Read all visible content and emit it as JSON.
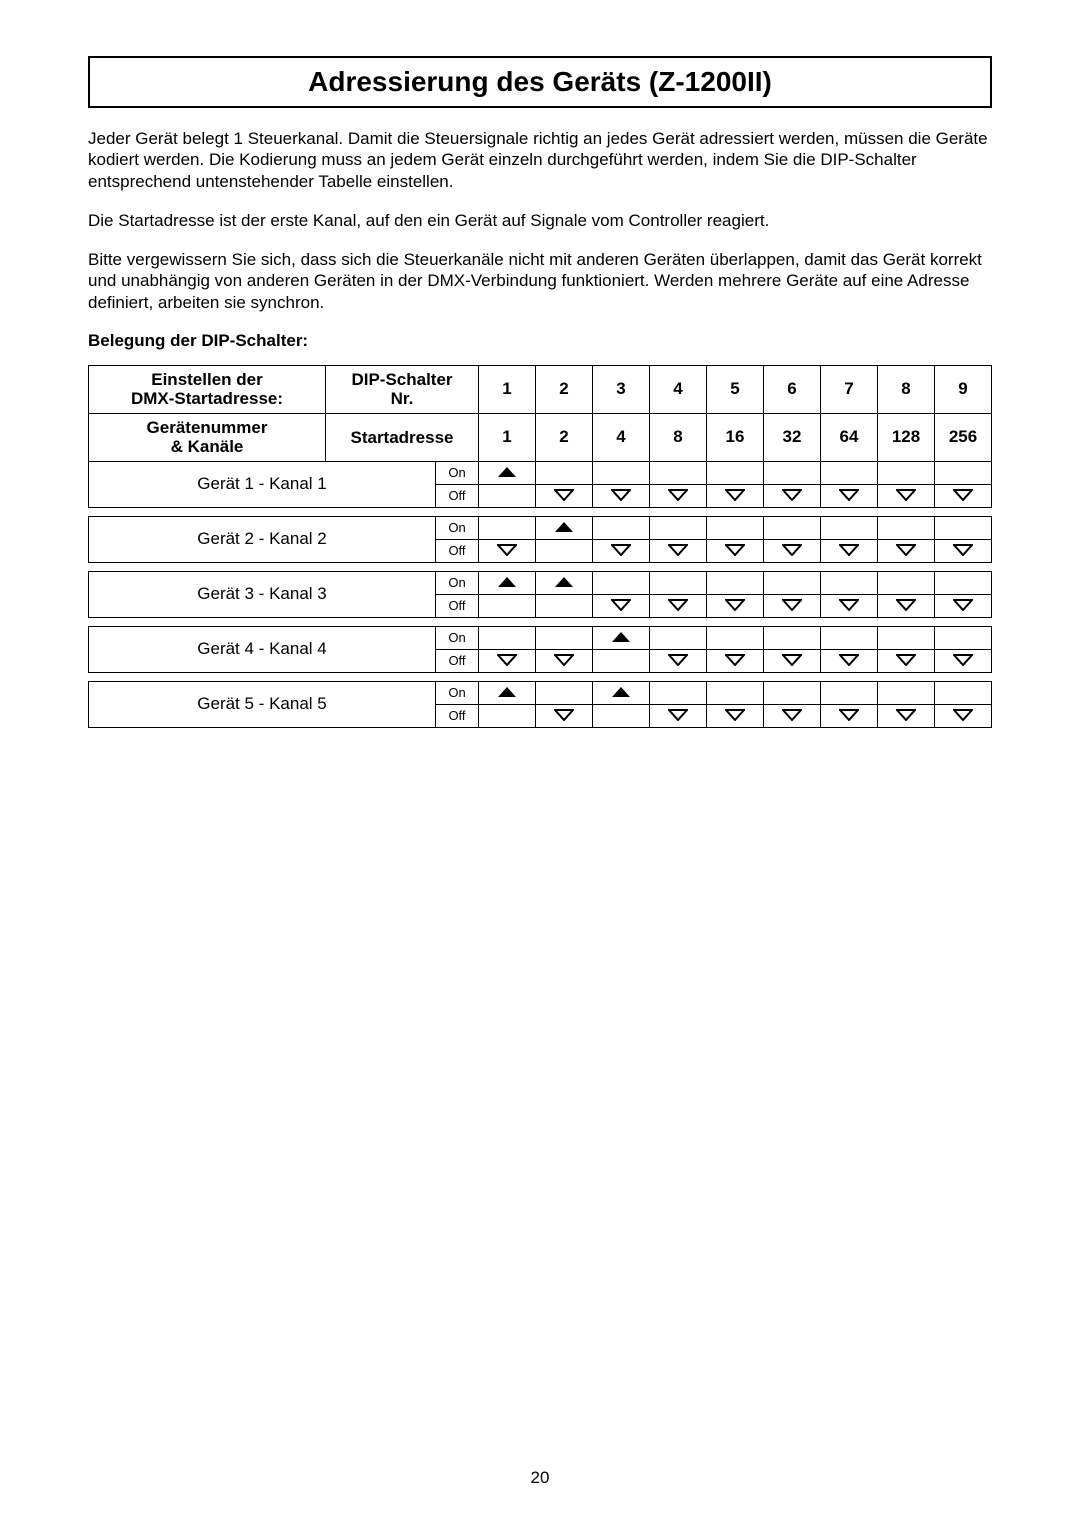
{
  "title": "Adressierung des Geräts (Z-1200II)",
  "paragraphs": [
    "Jeder Gerät belegt 1 Steuerkanal. Damit die Steuersignale richtig an jedes Gerät adressiert werden, müssen die Geräte kodiert werden. Die Kodierung muss an jedem Gerät einzeln durchgeführt werden, indem Sie die DIP-Schalter entsprechend untenstehender Tabelle einstellen.",
    "Die Startadresse ist der erste Kanal, auf den ein Gerät auf Signale vom Controller reagiert.",
    "Bitte vergewissern Sie sich, dass sich die Steuerkanäle nicht mit anderen Geräten überlappen, damit das Gerät korrekt und unabhängig von anderen Geräten in der DMX-Verbindung funktioniert. Werden mehrere Geräte auf eine Adresse definiert, arbeiten sie synchron."
  ],
  "subheading": "Belegung der DIP-Schalter:",
  "table": {
    "header_row1_left_line1": "Einstellen der",
    "header_row1_left_line2": "DMX-Startadresse:",
    "header_row1_right_line1": "DIP-Schalter",
    "header_row1_right_line2": "Nr.",
    "header_row2_left_line1": "Gerätenummer",
    "header_row2_left_line2": "& Kanäle",
    "header_row2_right": "Startadresse",
    "dip_numbers": [
      "1",
      "2",
      "3",
      "4",
      "5",
      "6",
      "7",
      "8",
      "9"
    ],
    "start_values": [
      "1",
      "2",
      "4",
      "8",
      "16",
      "32",
      "64",
      "128",
      "256"
    ],
    "on_label": "On",
    "off_label": "Off",
    "devices": [
      {
        "label": "Gerät 1 - Kanal 1",
        "on": [
          true,
          false,
          false,
          false,
          false,
          false,
          false,
          false,
          false
        ]
      },
      {
        "label": "Gerät 2 - Kanal 2",
        "on": [
          false,
          true,
          false,
          false,
          false,
          false,
          false,
          false,
          false
        ]
      },
      {
        "label": "Gerät 3 - Kanal 3",
        "on": [
          true,
          true,
          false,
          false,
          false,
          false,
          false,
          false,
          false
        ]
      },
      {
        "label": "Gerät 4 - Kanal 4",
        "on": [
          false,
          false,
          true,
          false,
          false,
          false,
          false,
          false,
          false
        ]
      },
      {
        "label": "Gerät 5 - Kanal 5",
        "on": [
          true,
          false,
          true,
          false,
          false,
          false,
          false,
          false,
          false
        ]
      }
    ]
  },
  "page_number": "20",
  "colors": {
    "fg": "#000000",
    "bg": "#ffffff"
  },
  "icon_size": {
    "w": 20,
    "h": 12
  }
}
